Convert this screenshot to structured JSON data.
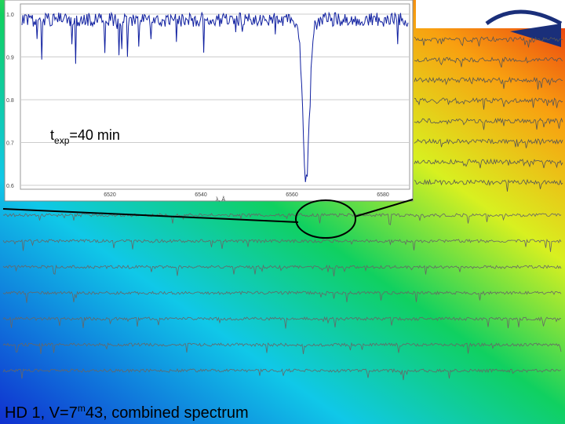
{
  "inset": {
    "annotation": {
      "base": "t",
      "subscript": "exp",
      "rest": "=40 min"
    },
    "yticks": [
      "1.0",
      "0.9",
      "0.8",
      "0.7",
      "0.6"
    ],
    "xticks": [
      "6520",
      "6540",
      "6560",
      "6580"
    ],
    "xlabel": "λ, Å"
  },
  "caption": {
    "prefix": "HD 1, V=7",
    "superscript": "m",
    "suffix": "43, combined spectrum"
  }
}
